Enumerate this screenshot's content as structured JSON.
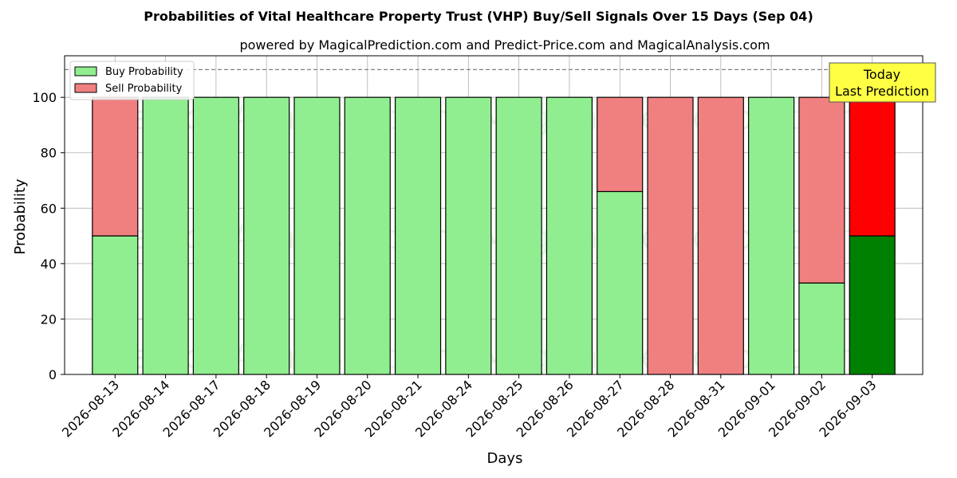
{
  "chart_data": {
    "type": "bar",
    "stacked": true,
    "title": "Probabilities of Vital Healthcare Property Trust (VHP) Buy/Sell Signals Over 15 Days (Sep 04)",
    "subtitle": "powered by MagicalPrediction.com and Predict-Price.com and MagicalAnalysis.com",
    "xlabel": "Days",
    "ylabel": "Probability",
    "ylim": [
      0,
      115
    ],
    "yticks": [
      0,
      20,
      40,
      60,
      80,
      100
    ],
    "reference_line": 110,
    "grid": true,
    "legend_position": "top-left",
    "categories": [
      "2026-08-13",
      "2026-08-14",
      "2026-08-17",
      "2026-08-18",
      "2026-08-19",
      "2026-08-20",
      "2026-08-21",
      "2026-08-24",
      "2026-08-25",
      "2026-08-26",
      "2026-08-27",
      "2026-08-28",
      "2026-08-31",
      "2026-09-01",
      "2026-09-02",
      "2026-09-03"
    ],
    "series": [
      {
        "name": "Buy Probability",
        "color": "#90ee90",
        "highlight_color": "#008000",
        "values": [
          50,
          100,
          100,
          100,
          100,
          100,
          100,
          100,
          100,
          100,
          66,
          0,
          0,
          100,
          33,
          50
        ]
      },
      {
        "name": "Sell Probability",
        "color": "#f08080",
        "highlight_color": "#ff0000",
        "values": [
          50,
          0,
          0,
          0,
          0,
          0,
          0,
          0,
          0,
          0,
          34,
          100,
          100,
          0,
          67,
          50
        ]
      }
    ],
    "highlight_index": 15,
    "annotation": {
      "line1": "Today",
      "line2": "Last Prediction",
      "color": "#ffff44"
    },
    "watermarks": [
      "MagicalAnalysis.com",
      "MagicalPrediction.com"
    ]
  }
}
